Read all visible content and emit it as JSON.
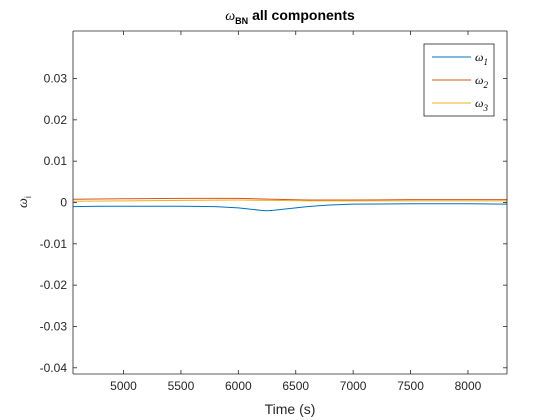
{
  "chart_data": {
    "type": "line",
    "title": {
      "symbol": "ω",
      "subscript": "BN",
      "text": "all components"
    },
    "xlabel": "Time (s)",
    "ylabel": {
      "symbol": "ω",
      "subscript": "i"
    },
    "xlim": [
      4560,
      8340
    ],
    "ylim": [
      -0.0415,
      0.0415
    ],
    "xticks": [
      5000,
      5500,
      6000,
      6500,
      7000,
      7500,
      8000
    ],
    "yticks": [
      -0.04,
      -0.03,
      -0.02,
      -0.01,
      0,
      0.01,
      0.02,
      0.03
    ],
    "ytick_labels": [
      "-0.04",
      "-0.03",
      "-0.02",
      "-0.01",
      "0",
      "0.01",
      "0.02",
      "0.03"
    ],
    "grid": false,
    "legend_position": "top-right",
    "series": [
      {
        "name": "ω",
        "name_subscript": "1",
        "color": "#0072BD",
        "x": [
          4560,
          4800,
          5000,
          5500,
          5800,
          6000,
          6100,
          6200,
          6250,
          6300,
          6400,
          6500,
          6600,
          6700,
          6800,
          7000,
          7500,
          8000,
          8340
        ],
        "y": [
          -0.001,
          -0.0009,
          -0.0009,
          -0.0009,
          -0.001,
          -0.0013,
          -0.0016,
          -0.0019,
          -0.002,
          -0.0019,
          -0.0016,
          -0.0013,
          -0.001,
          -0.0008,
          -0.0006,
          -0.0004,
          -0.0003,
          -0.0003,
          -0.0004
        ]
      },
      {
        "name": "ω",
        "name_subscript": "2",
        "color": "#D95319",
        "x": [
          4560,
          5000,
          5500,
          6000,
          6300,
          6600,
          7000,
          7500,
          8000,
          8340
        ],
        "y": [
          0.0008,
          0.0009,
          0.001,
          0.001,
          0.0008,
          0.0006,
          0.0006,
          0.0007,
          0.0007,
          0.0007
        ]
      },
      {
        "name": "ω",
        "name_subscript": "3",
        "color": "#EDB120",
        "x": [
          4560,
          5000,
          5500,
          6000,
          6300,
          6600,
          7000,
          7500,
          8000,
          8340
        ],
        "y": [
          0.0003,
          0.0004,
          0.0005,
          0.0006,
          0.0005,
          0.0004,
          0.0004,
          0.0004,
          0.0004,
          0.0004
        ]
      }
    ]
  }
}
